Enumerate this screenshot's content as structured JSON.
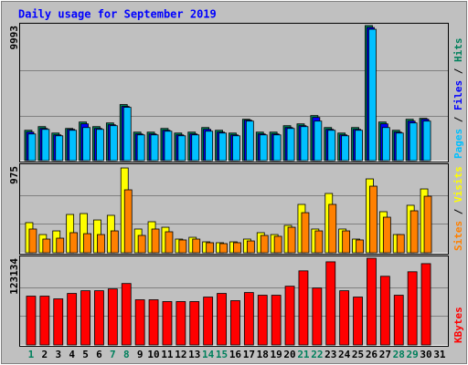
{
  "title": "Daily usage for September 2019",
  "categories": [
    "1",
    "2",
    "3",
    "4",
    "5",
    "6",
    "7",
    "8",
    "9",
    "10",
    "11",
    "12",
    "13",
    "14",
    "15",
    "16",
    "17",
    "18",
    "19",
    "20",
    "21",
    "22",
    "23",
    "24",
    "25",
    "26",
    "27",
    "28",
    "29",
    "30",
    "31"
  ],
  "category_colors": [
    "#00805c",
    "#000000",
    "#000000",
    "#000000",
    "#000000",
    "#000000",
    "#00805c",
    "#00805c",
    "#000000",
    "#000000",
    "#000000",
    "#000000",
    "#000000",
    "#00805c",
    "#00805c",
    "#000000",
    "#000000",
    "#000000",
    "#000000",
    "#000000",
    "#00805c",
    "#00805c",
    "#000000",
    "#000000",
    "#000000",
    "#000000",
    "#000000",
    "#00805c",
    "#00805c",
    "#000000",
    "#000000"
  ],
  "legend_separator": "/",
  "chart_data": [
    {
      "type": "bar",
      "ylim": [
        0,
        9993
      ],
      "yticks": [
        9993
      ],
      "grid": true,
      "series": [
        {
          "name": "Pages",
          "color": "#00c0ff",
          "values": [
            1972,
            2312,
            1836,
            2244,
            2448,
            2312,
            2584,
            3944,
            1904,
            1904,
            2176,
            1836,
            1904,
            2176,
            2040,
            1836,
            2924,
            1904,
            1904,
            2380,
            2516,
            2924,
            2244,
            1836,
            2244,
            9720,
            2448,
            2040,
            2788,
            2924,
            null
          ]
        },
        {
          "name": "Files",
          "color": "#0000ff",
          "values": [
            2108,
            2380,
            1904,
            2312,
            2720,
            2380,
            2652,
            4012,
            1972,
            1972,
            2244,
            1904,
            1972,
            2312,
            2108,
            1904,
            2992,
            1972,
            1972,
            2448,
            2584,
            3196,
            2312,
            1904,
            2312,
            9850,
            2720,
            2108,
            2924,
            3060,
            null
          ]
        },
        {
          "name": "Hits",
          "color": "#00805c",
          "values": [
            2244,
            2516,
            2040,
            2380,
            2856,
            2516,
            2788,
            4148,
            2108,
            2108,
            2380,
            2040,
            2108,
            2448,
            2244,
            2040,
            3060,
            2108,
            2108,
            2584,
            2720,
            3332,
            2448,
            2040,
            2448,
            9993,
            2856,
            2244,
            3060,
            3128,
            null
          ]
        }
      ]
    },
    {
      "type": "bar",
      "ylim": [
        0,
        975
      ],
      "yticks": [
        975
      ],
      "grid": true,
      "series": [
        {
          "name": "Sites",
          "color": "#ff8000",
          "values": [
            267,
            154,
            164,
            226,
            215,
            205,
            246,
            708,
            195,
            267,
            236,
            144,
            154,
            113,
            103,
            113,
            133,
            195,
            185,
            287,
            451,
            246,
            544,
            246,
            144,
            749,
            400,
            205,
            472,
            636,
            null
          ]
        },
        {
          "name": "Visits",
          "color": "#ffff00",
          "values": [
            339,
            205,
            246,
            431,
            441,
            369,
            421,
            954,
            267,
            349,
            287,
            154,
            174,
            123,
            113,
            123,
            154,
            226,
            205,
            308,
            544,
            267,
            667,
            267,
            154,
            831,
            462,
            205,
            534,
            718,
            null
          ]
        }
      ]
    },
    {
      "type": "bar",
      "ylim": [
        0,
        123134
      ],
      "yticks": [
        123134
      ],
      "grid": true,
      "series": [
        {
          "name": "KBytes",
          "color": "#ff0000",
          "values": [
            69282,
            69282,
            65433,
            73131,
            76980,
            76980,
            79546,
            87244,
            64150,
            64150,
            61584,
            61584,
            61584,
            67999,
            73131,
            62867,
            74414,
            70565,
            70565,
            83395,
            105206,
            80829,
            118036,
            76980,
            67999,
            123134,
            97508,
            70565,
            103923,
            115470,
            null
          ]
        }
      ]
    }
  ]
}
